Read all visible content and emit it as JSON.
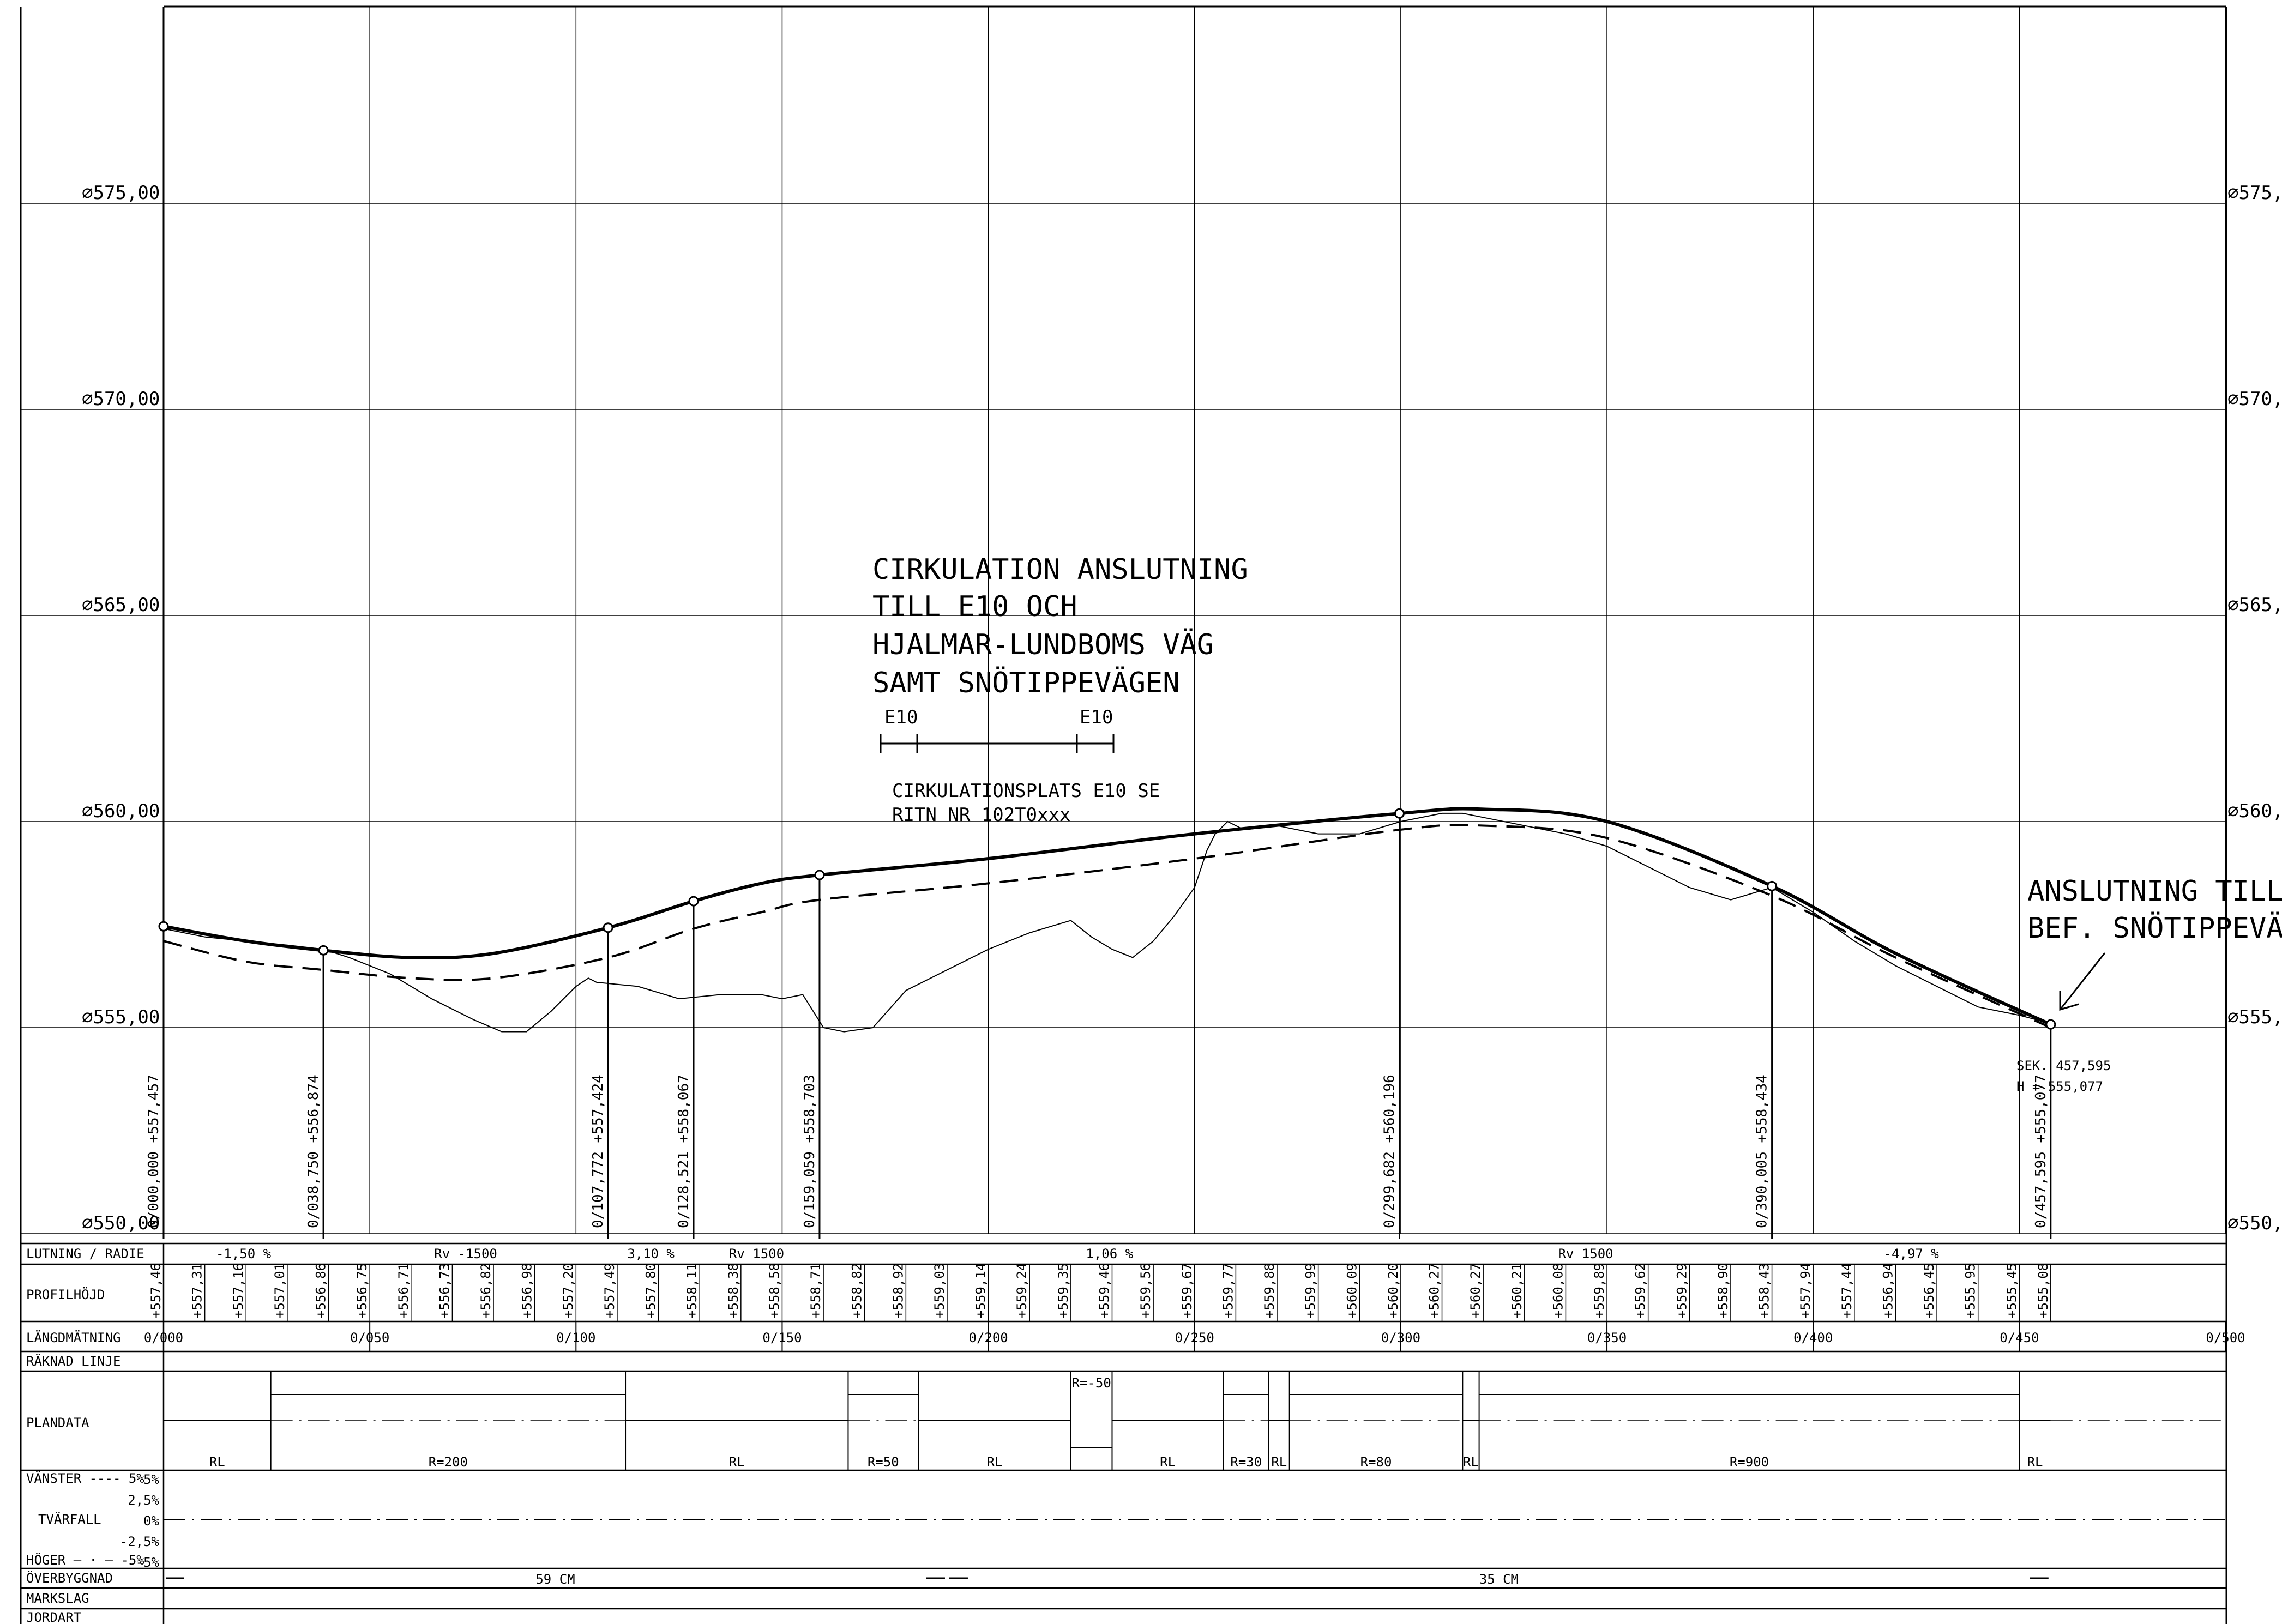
{
  "elevation_axis": {
    "labels": [
      "575,00",
      "570,00",
      "565,00",
      "560,00",
      "555,00",
      "550,00"
    ],
    "values": [
      575,
      570,
      565,
      560,
      555,
      550
    ]
  },
  "title_block": {
    "lines": [
      "CIRKULATION ANSLUTNING",
      "TILL E10 OCH",
      "HJALMAR-LUNDBOMS VÄG",
      "SAMT SNÖTIPPEVÄGEN"
    ],
    "legend_left": "E10",
    "legend_right": "E10",
    "sub_lines": [
      "CIRKULATIONSPLATS E10 SE",
      "RITN NR 102T0xxx"
    ]
  },
  "connection_note": {
    "lines": [
      "ANSLUTNING TILL",
      "BEF. SNÖTIPPEVÄG"
    ]
  },
  "end_point": {
    "sek": "SEK. 457,595",
    "h": "H = 555,077"
  },
  "chart_data": {
    "type": "line",
    "title": "",
    "xlabel": "LÄNGDMÄTNING",
    "ylabel": "",
    "xlim": [
      0,
      500
    ],
    "ylim": [
      550,
      580
    ],
    "grid": true,
    "series": [
      {
        "role": "design-profile",
        "x": [
          0,
          20,
          38.75,
          60,
          80,
          107.772,
          128.521,
          145,
          159.059,
          200,
          250,
          299.682,
          320,
          350,
          390.005,
          420,
          457.595
        ],
        "y": [
          557.457,
          557.1,
          556.874,
          556.7,
          556.8,
          557.424,
          558.067,
          558.5,
          558.703,
          559.1,
          559.7,
          560.196,
          560.3,
          560.0,
          558.434,
          556.8,
          555.077
        ]
      },
      {
        "role": "lower-profile",
        "x": [
          0,
          20,
          38.75,
          60,
          80,
          107.772,
          128.521,
          145,
          159.059,
          200,
          250,
          299.682,
          320,
          350,
          390.005,
          420,
          457.595
        ],
        "y": [
          557.1,
          556.6,
          556.4,
          556.2,
          556.2,
          556.7,
          557.4,
          557.8,
          558.1,
          558.5,
          559.1,
          559.8,
          559.9,
          559.6,
          558.2,
          556.7,
          555.0
        ]
      },
      {
        "role": "terrain",
        "x": [
          0,
          10,
          20,
          30,
          38.75,
          45,
          55,
          65,
          75,
          82,
          88,
          94,
          100,
          103,
          105,
          115,
          125,
          135,
          145,
          150,
          155,
          160,
          165,
          172,
          180,
          190,
          200,
          210,
          220,
          225,
          230,
          235,
          240,
          245,
          250,
          253,
          255,
          258,
          262,
          270,
          280,
          290,
          300,
          310,
          315,
          320,
          330,
          340,
          350,
          360,
          370,
          380,
          390,
          400,
          410,
          420,
          430,
          440,
          450,
          457.595
        ],
        "y": [
          557.4,
          557.2,
          557.1,
          557.0,
          556.9,
          556.7,
          556.3,
          555.7,
          555.2,
          554.9,
          554.9,
          555.4,
          556.0,
          556.2,
          556.1,
          556.0,
          555.7,
          555.8,
          555.8,
          555.7,
          555.8,
          555.0,
          554.9,
          555.0,
          555.9,
          556.4,
          556.9,
          557.3,
          557.6,
          557.2,
          556.9,
          556.7,
          557.1,
          557.7,
          558.4,
          559.3,
          559.7,
          560.0,
          559.8,
          559.9,
          559.7,
          559.7,
          560.0,
          560.2,
          560.2,
          560.1,
          559.9,
          559.7,
          559.4,
          558.9,
          558.4,
          558.1,
          558.4,
          557.8,
          557.1,
          556.5,
          556.0,
          555.5,
          555.3,
          555.1
        ]
      }
    ],
    "vertical_points": [
      {
        "x": 0,
        "station": "0/000,000",
        "height": "+557,457"
      },
      {
        "x": 38.75,
        "station": "0/038,750",
        "height": "+556,874"
      },
      {
        "x": 107.772,
        "station": "0/107,772",
        "height": "+557,424"
      },
      {
        "x": 128.521,
        "station": "0/128,521",
        "height": "+558,067"
      },
      {
        "x": 159.059,
        "station": "0/159,059",
        "height": "+558,703"
      },
      {
        "x": 299.682,
        "station": "0/299,682",
        "height": "+560,196"
      },
      {
        "x": 390.005,
        "station": "0/390,005",
        "height": "+558,434"
      },
      {
        "x": 457.595,
        "station": "0/457,595",
        "height": "+555,077"
      }
    ]
  },
  "band": {
    "row_labels": {
      "lutning": "LUTNING / RADIE",
      "profilhojd": "PROFILHÖJD",
      "langdmatning": "LÄNGDMÄTNING",
      "raknad": "RÄKNAD LINJE",
      "plandata": "PLANDATA",
      "vanster": "VÄNSTER ---- 5%",
      "tvarfall": "TVÄRFALL",
      "hoger": "HÖGER — · — -5%",
      "overbyggnad": "ÖVERBYGGNAD",
      "markslag": "MARKSLAG",
      "jordart": "JORDART"
    },
    "tvarfall_scale": [
      "5%",
      "2,5%",
      "0%",
      "-2,5%",
      "-5%"
    ],
    "lutning": [
      {
        "x0": 0,
        "x1": 38.75,
        "text": "-1,50 %"
      },
      {
        "x0": 38.75,
        "x1": 107.772,
        "text": "Rv -1500"
      },
      {
        "x0": 107.772,
        "x1": 128.521,
        "text": "3,10 %"
      },
      {
        "x0": 128.521,
        "x1": 159.059,
        "text": "Rv 1500"
      },
      {
        "x0": 159.059,
        "x1": 299.682,
        "text": "1,06 %"
      },
      {
        "x0": 299.682,
        "x1": 390.005,
        "text": "Rv 1500"
      },
      {
        "x0": 390.005,
        "x1": 457.595,
        "text": "-4,97 %"
      }
    ],
    "profilhojd": [
      "+557,46",
      "+557,31",
      "+557,16",
      "+557,01",
      "+556,86",
      "+556,75",
      "+556,71",
      "+556,73",
      "+556,82",
      "+556,98",
      "+557,20",
      "+557,49",
      "+557,80",
      "+558,11",
      "+558,38",
      "+558,58",
      "+558,71",
      "+558,82",
      "+558,92",
      "+559,03",
      "+559,14",
      "+559,24",
      "+559,35",
      "+559,46",
      "+559,56",
      "+559,67",
      "+559,77",
      "+559,88",
      "+559,99",
      "+560,09",
      "+560,20",
      "+560,27",
      "+560,27",
      "+560,21",
      "+560,08",
      "+559,89",
      "+559,62",
      "+559,29",
      "+558,90",
      "+558,43",
      "+557,94",
      "+557,44",
      "+556,94",
      "+556,45",
      "+555,95",
      "+555,45",
      "+555,08"
    ],
    "langdmatning": [
      "0/000",
      "0/050",
      "0/100",
      "0/150",
      "0/200",
      "0/250",
      "0/300",
      "0/350",
      "0/400",
      "0/450",
      "0/500"
    ],
    "plandata": [
      {
        "x0": 0,
        "x1": 26,
        "text": "RL",
        "kind": "line"
      },
      {
        "x0": 26,
        "x1": 112,
        "text": "R=200",
        "kind": "curve-high"
      },
      {
        "x0": 112,
        "x1": 166,
        "text": "RL",
        "kind": "line"
      },
      {
        "x0": 166,
        "x1": 183,
        "text": "R=50",
        "kind": "curve-high"
      },
      {
        "x0": 183,
        "x1": 220,
        "text": "RL",
        "kind": "line"
      },
      {
        "x0": 220,
        "x1": 230,
        "text": "R=-50",
        "kind": "curve-low"
      },
      {
        "x0": 230,
        "x1": 257,
        "text": "RL",
        "kind": "line"
      },
      {
        "x0": 257,
        "x1": 268,
        "text": "R=30",
        "kind": "curve-high"
      },
      {
        "x0": 268,
        "x1": 273,
        "text": "RL",
        "kind": "line"
      },
      {
        "x0": 273,
        "x1": 315,
        "text": "R=80",
        "kind": "curve-high"
      },
      {
        "x0": 315,
        "x1": 319,
        "text": "RL",
        "kind": "line"
      },
      {
        "x0": 319,
        "x1": 450,
        "text": "R=900",
        "kind": "curve-high"
      },
      {
        "x0": 450,
        "x1": 457.595,
        "text": "RL",
        "kind": "line"
      }
    ],
    "overbyggnad": [
      {
        "x0": 0,
        "x1": 190,
        "text": "59 CM"
      },
      {
        "x0": 190,
        "x1": 457.595,
        "text": "35 CM"
      }
    ]
  }
}
